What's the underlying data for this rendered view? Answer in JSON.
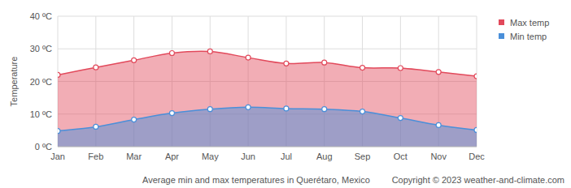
{
  "chart_data": {
    "type": "area",
    "title": "Average min and max temperatures in Querétaro, Mexico",
    "annotations": [
      "Copyright © 2023  weather-and-climate.com"
    ],
    "y_label": "Temperature",
    "categories": [
      "Jan",
      "Feb",
      "Mar",
      "Apr",
      "May",
      "Jun",
      "Jul",
      "Aug",
      "Sep",
      "Oct",
      "Nov",
      "Dec"
    ],
    "series": [
      {
        "name": "Max temp",
        "color": "#e2495b",
        "marker": "circle",
        "line_style": "smooth",
        "values": [
          22.0,
          24.3,
          26.5,
          28.7,
          29.2,
          27.3,
          25.5,
          25.8,
          24.2,
          24.1,
          22.9,
          21.6
        ]
      },
      {
        "name": "Min temp",
        "color": "#4a8fd9",
        "marker": "circle",
        "line_style": "smooth",
        "values": [
          4.8,
          6.1,
          8.3,
          10.3,
          11.5,
          12.1,
          11.7,
          11.5,
          10.8,
          8.8,
          6.6,
          5.1
        ]
      }
    ],
    "ylim": [
      0,
      40
    ],
    "yticks": [
      {
        "value": 0,
        "label": "0 ºC"
      },
      {
        "value": 10,
        "label": "10 ºC"
      },
      {
        "value": 20,
        "label": "20 ºC"
      },
      {
        "value": 30,
        "label": "30 ºC"
      },
      {
        "value": 40,
        "label": "40 ºC"
      }
    ],
    "grid": true,
    "legend": "top-right"
  }
}
